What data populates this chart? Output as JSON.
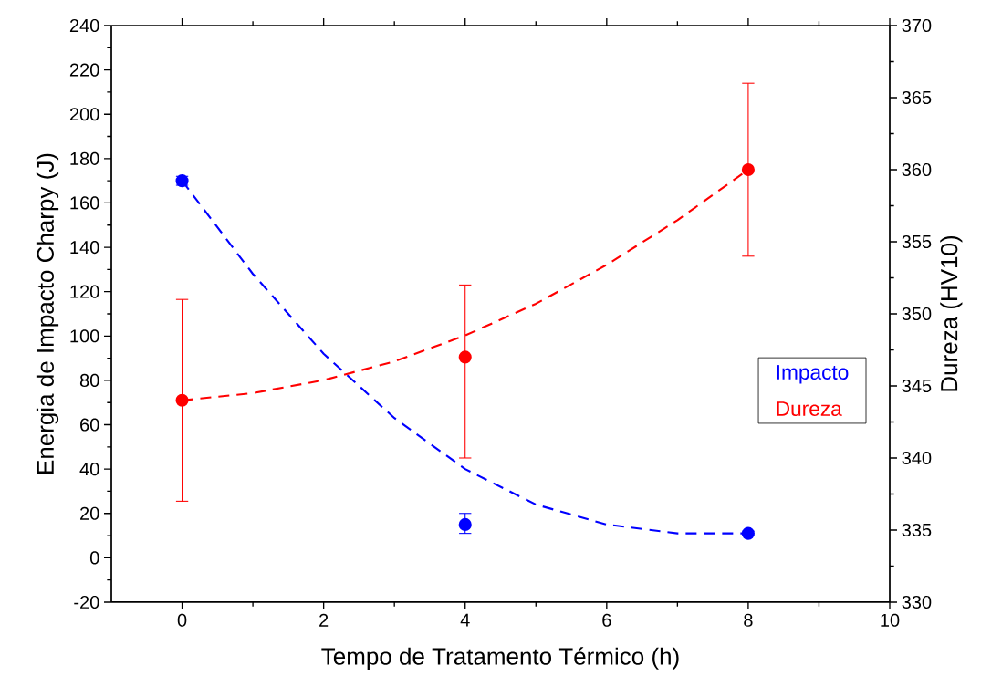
{
  "chart_data": {
    "type": "scatter",
    "xlabel": "Tempo de Tratamento Térmico (h)",
    "ylabel": "Energia de Impacto Charpy (J)",
    "y2label": "Dureza (HV10)",
    "xlim": [
      -1,
      10
    ],
    "xticks": [
      0,
      2,
      4,
      6,
      8,
      10
    ],
    "ylim": [
      -20,
      240
    ],
    "yticks": [
      -20,
      0,
      20,
      40,
      60,
      80,
      100,
      120,
      140,
      160,
      180,
      200,
      220,
      240
    ],
    "y2lim": [
      330,
      370
    ],
    "y2ticks": [
      330,
      335,
      340,
      345,
      350,
      355,
      360,
      365,
      370
    ],
    "marker": "circle",
    "grid": false,
    "legend": "right",
    "series": [
      {
        "name": "Impacto",
        "color": "#0000ff",
        "x": [
          0,
          4,
          8
        ],
        "values": [
          170,
          15,
          11
        ],
        "errors": [
          2,
          [
            11,
            20
          ],
          1
        ]
      },
      {
        "name": "Dureza",
        "axis": "y2",
        "color": "#ff0000",
        "x": [
          0,
          4,
          8
        ],
        "values": [
          344,
          347,
          360
        ],
        "errors": [
          [
            337,
            351
          ],
          [
            340,
            352
          ],
          [
            354,
            366
          ]
        ]
      },
      {
        "type": "line",
        "color": "#0000ff",
        "marker": "none",
        "line_style": "dashed",
        "x": [
          0,
          1,
          2,
          3,
          4,
          5,
          6,
          7,
          8
        ],
        "values": [
          170,
          128,
          92,
          63,
          40,
          24,
          15,
          11,
          11
        ]
      },
      {
        "type": "line",
        "axis": "y2",
        "color": "#ff0000",
        "marker": "none",
        "line_style": "dashed",
        "x": [
          0,
          1,
          2,
          3,
          4,
          5,
          6,
          7,
          8
        ],
        "values": [
          344,
          344.5,
          345.4,
          346.7,
          348.5,
          350.7,
          353.4,
          356.5,
          360
        ]
      }
    ]
  }
}
